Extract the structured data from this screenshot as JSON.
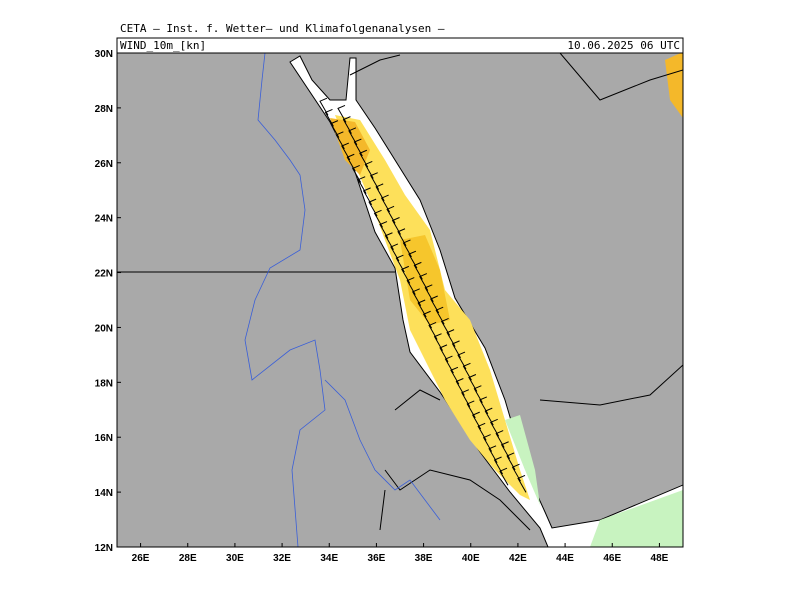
{
  "header": {
    "title": "CETA – Inst. f. Wetter– und Klimafolgenanalysen –"
  },
  "map": {
    "field": "WIND_10m_[kn]",
    "time": "10.06.2025 06 UTC",
    "lat_labels": [
      "30N",
      "28N",
      "26N",
      "24N",
      "22N",
      "20N",
      "18N",
      "16N",
      "14N",
      "12N"
    ],
    "lon_labels": [
      "26E",
      "28E",
      "30E",
      "32E",
      "34E",
      "36E",
      "38E",
      "40E",
      "42E",
      "44E",
      "46E",
      "48E"
    ]
  }
}
